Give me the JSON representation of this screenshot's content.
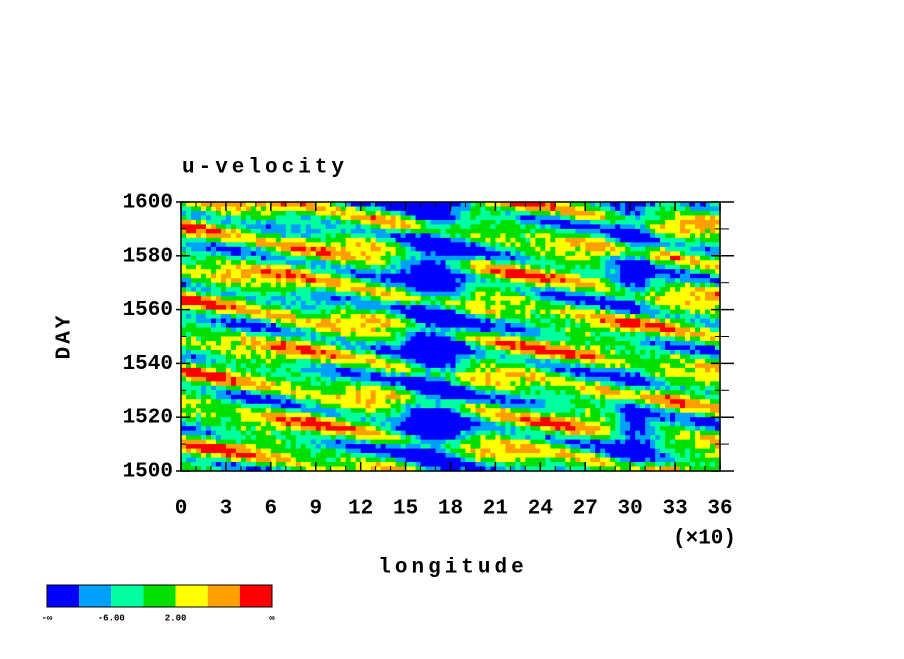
{
  "chart_data": {
    "type": "contour",
    "title": "u-velocity",
    "x_label": "longitude",
    "y_label": "DAY",
    "x_multiplier": "(×10)",
    "xlim": [
      0,
      36
    ],
    "xticks": [
      0,
      3,
      6,
      9,
      12,
      15,
      18,
      21,
      24,
      27,
      30,
      33,
      36
    ],
    "xminorticks": [
      1,
      2,
      4,
      5,
      7,
      8,
      10,
      11,
      13,
      14,
      16,
      17,
      19,
      20,
      22,
      23,
      25,
      26,
      28,
      29,
      31,
      32,
      34,
      35
    ],
    "ylim": [
      1500,
      1600
    ],
    "yticks": [
      1500,
      1520,
      1540,
      1560,
      1580,
      1600
    ],
    "yminorticks": [
      1510,
      1530,
      1550,
      1570,
      1590
    ],
    "colorbar": {
      "colors": [
        "#0000ff",
        "#00a0ff",
        "#00ffa0",
        "#00e000",
        "#ffff00",
        "#ffa000",
        "#ff0000"
      ],
      "labels": [
        "-∞",
        null,
        "-6.00",
        null,
        "2.00",
        null,
        null,
        "∞"
      ]
    }
  }
}
